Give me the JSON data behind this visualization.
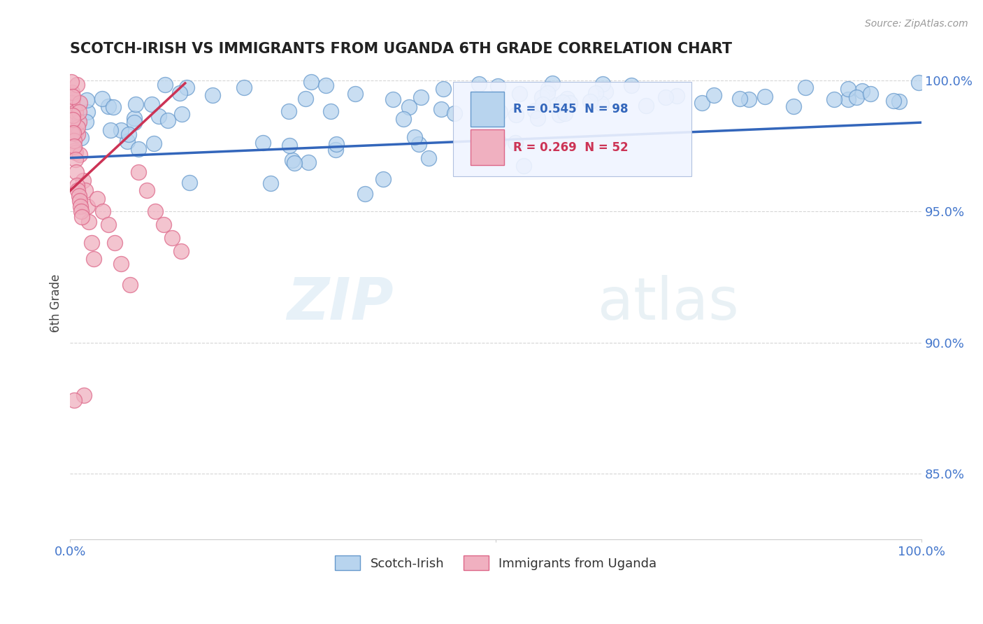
{
  "title": "SCOTCH-IRISH VS IMMIGRANTS FROM UGANDA 6TH GRADE CORRELATION CHART",
  "source": "Source: ZipAtlas.com",
  "ylabel": "6th Grade",
  "xlim": [
    0.0,
    1.0
  ],
  "ylim": [
    0.825,
    1.005
  ],
  "blue_R": 0.545,
  "blue_N": 98,
  "pink_R": 0.269,
  "pink_N": 52,
  "blue_label": "Scotch-Irish",
  "pink_label": "Immigrants from Uganda",
  "blue_color": "#b8d4ee",
  "blue_edge_color": "#6699cc",
  "pink_color": "#f0b0c0",
  "pink_edge_color": "#dd6688",
  "blue_line_color": "#3366bb",
  "pink_line_color": "#cc3355",
  "title_color": "#222222",
  "axis_label_color": "#4477cc",
  "grid_color": "#cccccc",
  "watermark_zip": "ZIP",
  "watermark_atlas": "atlas",
  "source_color": "#999999"
}
